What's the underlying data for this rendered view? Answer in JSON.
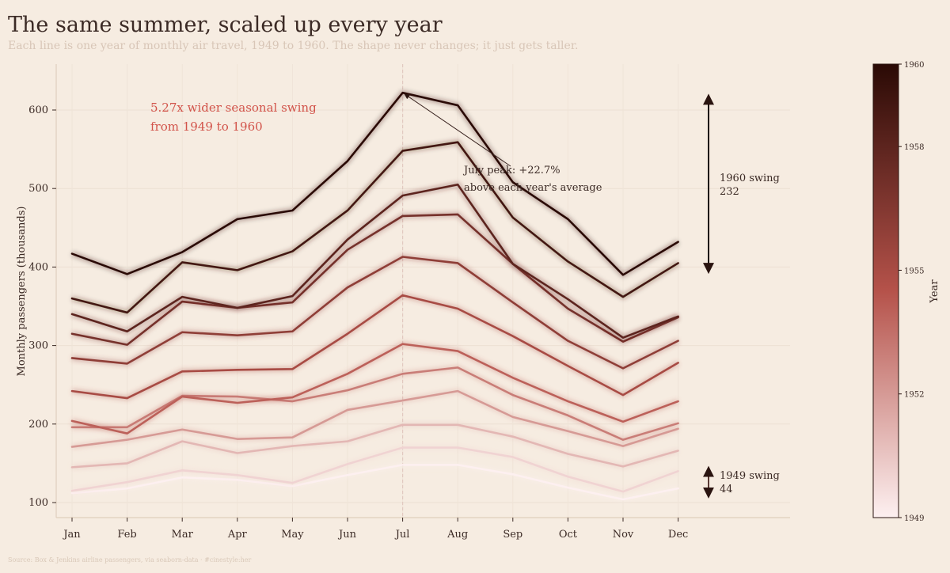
{
  "title": "The same summer, scaled up every year",
  "subtitle": "Each line is one year of monthly air travel, 1949 to 1960. The shape never changes; it just gets taller.",
  "source": "Source: Box & Jenkins airline passengers, via seaborn-data  ·  #cinestyle:her",
  "chart_data": {
    "type": "line",
    "categories": [
      "Jan",
      "Feb",
      "Mar",
      "Apr",
      "May",
      "Jun",
      "Jul",
      "Aug",
      "Sep",
      "Oct",
      "Nov",
      "Dec"
    ],
    "ylabel": "Monthly passengers (thousands)",
    "xlabel": "",
    "ylim": [
      82,
      668
    ],
    "yticks": [
      100,
      200,
      300,
      400,
      500,
      600
    ],
    "yticks_labels": [
      "100",
      "200",
      "300",
      "400",
      "500",
      "600"
    ],
    "grid": true,
    "series": [
      {
        "year": 1949,
        "values": [
          112,
          118,
          132,
          129,
          121,
          135,
          148,
          148,
          136,
          119,
          104,
          118
        ]
      },
      {
        "year": 1950,
        "values": [
          115,
          126,
          141,
          135,
          125,
          149,
          170,
          170,
          158,
          133,
          114,
          140
        ]
      },
      {
        "year": 1951,
        "values": [
          145,
          150,
          178,
          163,
          172,
          178,
          199,
          199,
          184,
          162,
          146,
          166
        ]
      },
      {
        "year": 1952,
        "values": [
          171,
          180,
          193,
          181,
          183,
          218,
          230,
          242,
          209,
          191,
          172,
          194
        ]
      },
      {
        "year": 1953,
        "values": [
          196,
          196,
          236,
          235,
          229,
          243,
          264,
          272,
          237,
          211,
          180,
          201
        ]
      },
      {
        "year": 1954,
        "values": [
          204,
          188,
          235,
          227,
          234,
          264,
          302,
          293,
          259,
          229,
          203,
          229
        ]
      },
      {
        "year": 1955,
        "values": [
          242,
          233,
          267,
          269,
          270,
          315,
          364,
          347,
          312,
          274,
          237,
          278
        ]
      },
      {
        "year": 1956,
        "values": [
          284,
          277,
          317,
          313,
          318,
          374,
          413,
          405,
          355,
          306,
          271,
          306
        ]
      },
      {
        "year": 1957,
        "values": [
          315,
          301,
          356,
          348,
          355,
          422,
          465,
          467,
          404,
          347,
          305,
          336
        ]
      },
      {
        "year": 1958,
        "values": [
          340,
          318,
          362,
          348,
          363,
          435,
          491,
          505,
          404,
          359,
          310,
          337
        ]
      },
      {
        "year": 1959,
        "values": [
          360,
          342,
          406,
          396,
          420,
          472,
          548,
          559,
          463,
          407,
          362,
          405
        ]
      },
      {
        "year": 1960,
        "values": [
          417,
          391,
          419,
          461,
          472,
          535,
          622,
          606,
          508,
          461,
          390,
          432
        ]
      }
    ],
    "colorbar": {
      "label": "Year",
      "range": [
        1949,
        1960
      ],
      "ticks": [
        "1960",
        "1958",
        "1955",
        "1952",
        "1949"
      ],
      "tick_years": [
        1960,
        1958,
        1955,
        1952,
        1949
      ],
      "color_low": "#fdf0f0",
      "color_mid": "#b5524a",
      "color_high": "#2a0a05"
    },
    "annotations": {
      "swing_ratio": {
        "line1": "5.27x wider seasonal swing",
        "line2": "from 1949 to 1960"
      },
      "july_peak": {
        "line1": "July peak: +22.7%",
        "line2": "above each year's average"
      },
      "swing_1960": {
        "label": "1960 swing",
        "value": "232",
        "from": 390,
        "to": 622
      },
      "swing_1949": {
        "label": "1949 swing",
        "value": "44",
        "from": 104,
        "to": 148
      }
    }
  }
}
